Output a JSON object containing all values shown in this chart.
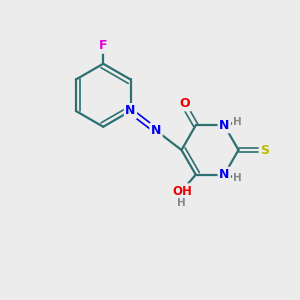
{
  "bg_color": "#ececec",
  "bond_color": "#2d7070",
  "atom_colors": {
    "F": "#dd00dd",
    "N": "#0000ee",
    "O": "#ee0000",
    "S": "#bbbb00",
    "H": "#888888",
    "C": "#2d7070"
  },
  "figsize": [
    3.0,
    3.0
  ],
  "dpi": 100,
  "xlim": [
    0,
    10
  ],
  "ylim": [
    0,
    10
  ]
}
